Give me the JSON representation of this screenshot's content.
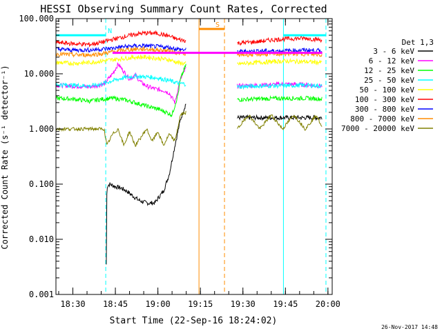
{
  "chart_data": {
    "type": "line",
    "title": "HESSI Observing Summary Count Rates, Corrected",
    "xlabel": "Start Time (22-Sep-16 18:24:02)",
    "ylabel": "Corrected Count Rate (s⁻¹ detector⁻¹)",
    "y_scale": "log",
    "ylim": [
      0.001,
      100
    ],
    "xlim_minutes": [
      24.03,
      121.5
    ],
    "x_ticks": [
      {
        "minute": 30,
        "label": "18:30"
      },
      {
        "minute": 45,
        "label": "18:45"
      },
      {
        "minute": 60,
        "label": "19:00"
      },
      {
        "minute": 75,
        "label": "19:15"
      },
      {
        "minute": 90,
        "label": "19:30"
      },
      {
        "minute": 105,
        "label": "19:45"
      },
      {
        "minute": 120,
        "label": "20:00"
      }
    ],
    "y_ticks": [
      {
        "value": 0.001,
        "label": "0.001"
      },
      {
        "value": 0.01,
        "label": "0.010"
      },
      {
        "value": 0.1,
        "label": "0.100"
      },
      {
        "value": 1,
        "label": "1.000"
      },
      {
        "value": 10,
        "label": "10.000"
      },
      {
        "value": 100,
        "label": "100.000"
      }
    ],
    "legend_title": "Det 1,3",
    "legend_position": "right",
    "series": [
      {
        "name": "3 - 6 keV",
        "color": "#000000",
        "points": [
          [
            41.8,
            0.0035
          ],
          [
            42,
            0.09
          ],
          [
            43,
            0.1
          ],
          [
            45,
            0.09
          ],
          [
            47,
            0.085
          ],
          [
            49,
            0.075
          ],
          [
            51,
            0.062
          ],
          [
            53,
            0.052
          ],
          [
            55,
            0.047
          ],
          [
            57,
            0.045
          ],
          [
            59,
            0.046
          ],
          [
            60,
            0.055
          ],
          [
            62,
            0.075
          ],
          [
            64,
            0.15
          ],
          [
            66,
            0.5
          ],
          [
            68,
            1.5
          ],
          [
            70,
            3
          ]
        ],
        "segments_after": [
          [
            88,
            1.6
          ],
          [
            95,
            1.6
          ],
          [
            105,
            1.6
          ],
          [
            115,
            1.6
          ],
          [
            118,
            1.6
          ]
        ]
      },
      {
        "name": "6 - 12 keV",
        "color": "#ff00ff",
        "points": [
          [
            24,
            6.2
          ],
          [
            30,
            6
          ],
          [
            36,
            5.8
          ],
          [
            41,
            6.5
          ],
          [
            44,
            10
          ],
          [
            46,
            15
          ],
          [
            48,
            11
          ],
          [
            50,
            8
          ],
          [
            52,
            9.5
          ],
          [
            54,
            7
          ],
          [
            56,
            6
          ],
          [
            58,
            5.5
          ],
          [
            60,
            5.2
          ],
          [
            62,
            5
          ],
          [
            64,
            4.5
          ],
          [
            66,
            3
          ],
          [
            67,
            5
          ],
          [
            68,
            8
          ],
          [
            70,
            13
          ]
        ],
        "segments_after": [
          [
            88,
            6
          ],
          [
            95,
            6.2
          ],
          [
            105,
            6.5
          ],
          [
            112,
            6.3
          ],
          [
            118,
            6
          ]
        ]
      },
      {
        "name": "12 - 25 keV",
        "color": "#00ff00",
        "points": [
          [
            24,
            3.6
          ],
          [
            30,
            3.5
          ],
          [
            36,
            3.2
          ],
          [
            41,
            3.5
          ],
          [
            44,
            3.6
          ],
          [
            48,
            3.4
          ],
          [
            52,
            3.0
          ],
          [
            56,
            2.6
          ],
          [
            60,
            2.3
          ],
          [
            63,
            2.0
          ],
          [
            65,
            1.8
          ],
          [
            67,
            4
          ],
          [
            68,
            8
          ],
          [
            70,
            15
          ]
        ],
        "segments_after": [
          [
            88,
            3.4
          ],
          [
            95,
            3.5
          ],
          [
            105,
            3.6
          ],
          [
            112,
            3.6
          ],
          [
            118,
            3.5
          ]
        ]
      },
      {
        "name": "25 - 50 keV",
        "color": "#00ffff",
        "points": [
          [
            24,
            6.4
          ],
          [
            30,
            6.2
          ],
          [
            36,
            6
          ],
          [
            40,
            6.5
          ],
          [
            44,
            7.5
          ],
          [
            48,
            8.5
          ],
          [
            52,
            9
          ],
          [
            56,
            8.8
          ],
          [
            60,
            8.4
          ],
          [
            64,
            7.5
          ],
          [
            67,
            6.8
          ],
          [
            70,
            6.5
          ]
        ],
        "segments_after": [
          [
            88,
            5.8
          ],
          [
            95,
            6
          ],
          [
            105,
            6.1
          ],
          [
            112,
            6.2
          ],
          [
            118,
            6
          ]
        ]
      },
      {
        "name": "50 - 100 keV",
        "color": "#ffff00",
        "points": [
          [
            24,
            16
          ],
          [
            30,
            15.5
          ],
          [
            36,
            16
          ],
          [
            40,
            17
          ],
          [
            44,
            18
          ],
          [
            48,
            19
          ],
          [
            52,
            20
          ],
          [
            56,
            20
          ],
          [
            60,
            19
          ],
          [
            64,
            18
          ],
          [
            67,
            16
          ],
          [
            70,
            15
          ]
        ],
        "segments_after": [
          [
            88,
            15
          ],
          [
            95,
            16
          ],
          [
            105,
            17
          ],
          [
            112,
            16.5
          ],
          [
            118,
            16
          ]
        ]
      },
      {
        "name": "100 - 300 keV",
        "color": "#ff0000",
        "points": [
          [
            24,
            37
          ],
          [
            30,
            35
          ],
          [
            36,
            34
          ],
          [
            40,
            37
          ],
          [
            44,
            42
          ],
          [
            48,
            47
          ],
          [
            52,
            52
          ],
          [
            56,
            55
          ],
          [
            60,
            54
          ],
          [
            64,
            48
          ],
          [
            67,
            42
          ],
          [
            70,
            40
          ]
        ],
        "segments_after": [
          [
            88,
            36
          ],
          [
            95,
            38
          ],
          [
            100,
            41
          ],
          [
            105,
            43
          ],
          [
            112,
            44
          ],
          [
            118,
            41
          ]
        ]
      },
      {
        "name": "300 - 800 keV",
        "color": "#0000ff",
        "points": [
          [
            24,
            28
          ],
          [
            30,
            27
          ],
          [
            36,
            27
          ],
          [
            40,
            28
          ],
          [
            44,
            29
          ],
          [
            48,
            31
          ],
          [
            52,
            32
          ],
          [
            56,
            32
          ],
          [
            60,
            31
          ],
          [
            64,
            30
          ],
          [
            67,
            28
          ],
          [
            70,
            27
          ]
        ],
        "segments_after": [
          [
            88,
            25
          ],
          [
            95,
            26
          ],
          [
            105,
            26
          ],
          [
            112,
            27
          ],
          [
            118,
            26
          ]
        ]
      },
      {
        "name": "800 - 7000 keV",
        "color": "#ff8c00",
        "points": [
          [
            24,
            23
          ],
          [
            30,
            22
          ],
          [
            36,
            22
          ],
          [
            40,
            23
          ],
          [
            44,
            25
          ],
          [
            48,
            27
          ],
          [
            52,
            28
          ],
          [
            56,
            28
          ],
          [
            60,
            27
          ],
          [
            64,
            26
          ],
          [
            67,
            24
          ],
          [
            70,
            23
          ]
        ],
        "segments_after": [
          [
            88,
            22
          ],
          [
            95,
            22.5
          ],
          [
            105,
            23
          ],
          [
            112,
            23
          ],
          [
            118,
            22
          ]
        ]
      },
      {
        "name": "7000 - 20000 keV",
        "color": "#808000",
        "points": [
          [
            24,
            1
          ],
          [
            28,
            1
          ],
          [
            32,
            1
          ],
          [
            36,
            1
          ],
          [
            40,
            1
          ],
          [
            41,
            1
          ],
          [
            42,
            0.5
          ],
          [
            44,
            0.8
          ],
          [
            46,
            1
          ],
          [
            48,
            0.5
          ],
          [
            50,
            0.9
          ],
          [
            52,
            0.5
          ],
          [
            54,
            0.7
          ],
          [
            56,
            1
          ],
          [
            58,
            0.6
          ],
          [
            60,
            0.9
          ],
          [
            62,
            0.5
          ],
          [
            64,
            0.8
          ],
          [
            66,
            0.6
          ],
          [
            68,
            1.8
          ],
          [
            70,
            2
          ]
        ],
        "segments_after": [
          [
            88,
            1
          ],
          [
            92,
            1.8
          ],
          [
            96,
            1
          ],
          [
            100,
            1.8
          ],
          [
            104,
            1
          ],
          [
            108,
            1.8
          ],
          [
            112,
            1
          ],
          [
            116,
            1.8
          ],
          [
            118,
            1
          ]
        ]
      }
    ],
    "flags": [
      {
        "label": "N",
        "color": "#00ffff",
        "level": 50,
        "spans": [
          [
            24.03,
            41.6
          ],
          [
            104.3,
            119.3
          ]
        ]
      },
      {
        "label": "S",
        "color": "#ff8c00",
        "level": 65,
        "spans": [
          [
            74.5,
            83.5
          ]
        ]
      },
      {
        "label": "",
        "color": "#ff00ff",
        "level": 24,
        "spans": [
          [
            44,
            118
          ]
        ]
      }
    ],
    "vertical_markers": [
      {
        "minute": 41.6,
        "color": "#00ffff",
        "style": "dashed"
      },
      {
        "minute": 74.5,
        "color": "#ff8c00",
        "style": "solid"
      },
      {
        "minute": 83.5,
        "color": "#ff8c00",
        "style": "dashed"
      },
      {
        "minute": 104.3,
        "color": "#00ffff",
        "style": "solid"
      },
      {
        "minute": 119.3,
        "color": "#00ffff",
        "style": "dashed"
      }
    ]
  },
  "footer_timestamp": "26-Nov-2017 14:48"
}
